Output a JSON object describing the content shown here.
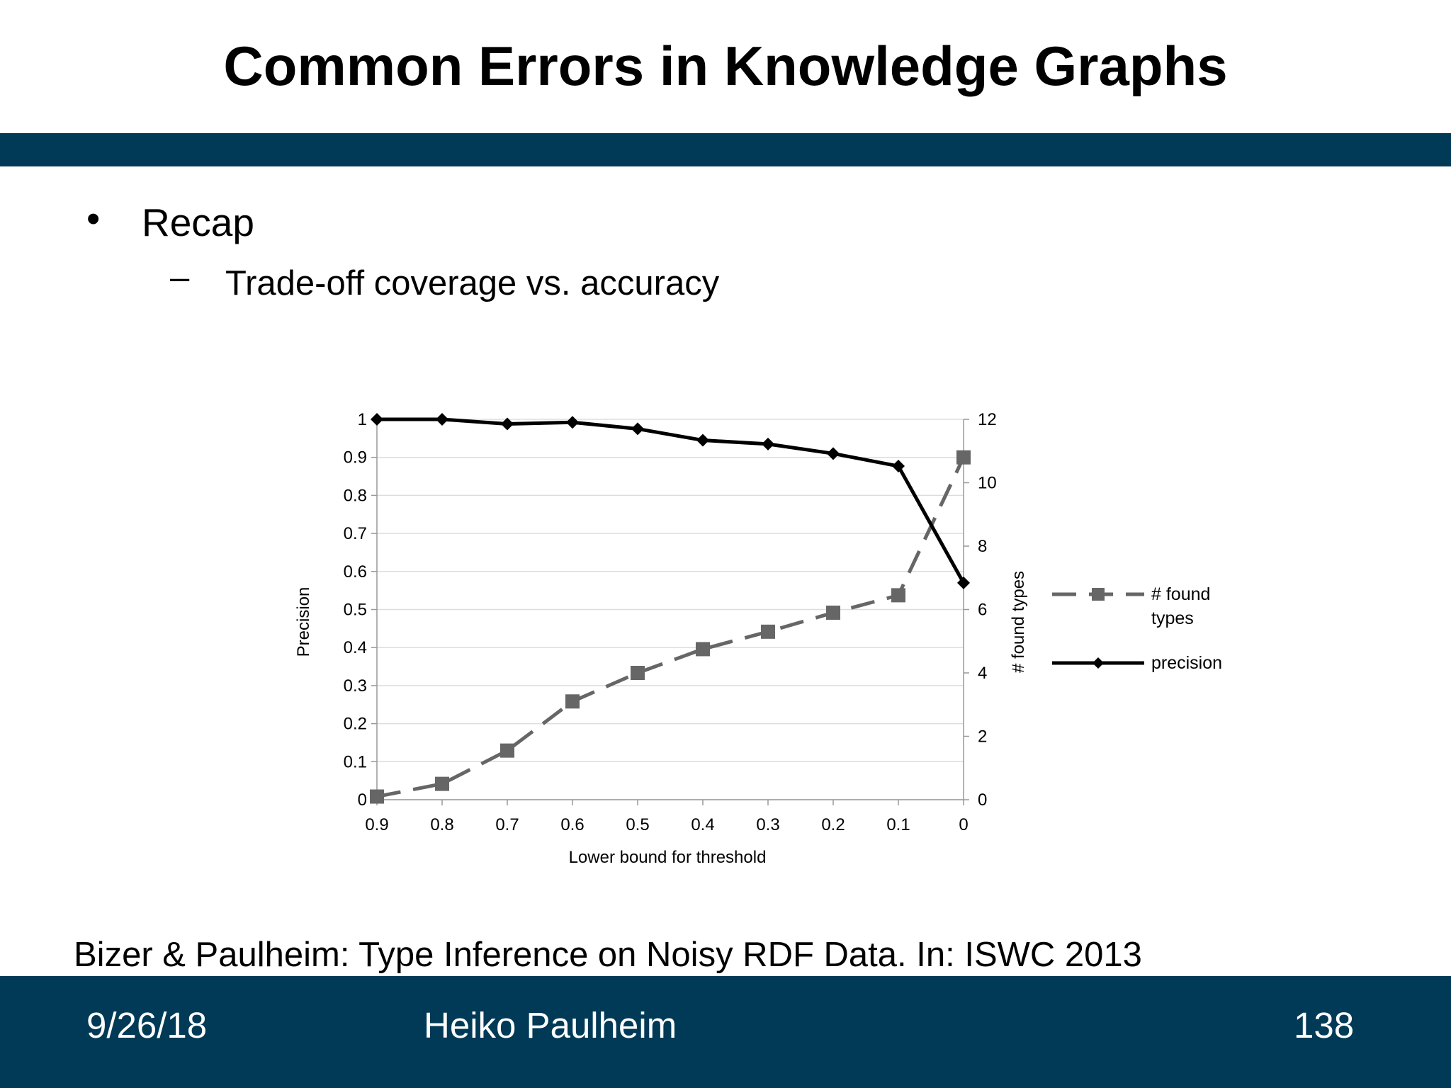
{
  "slide": {
    "title": "Common Errors in Knowledge Graphs",
    "bullet_marker": "•",
    "bullet": "Recap",
    "sub_marker": "–",
    "sub_bullet": "Trade-off coverage vs. accuracy",
    "citation": "Bizer & Paulheim: Type Inference on Noisy RDF Data. In: ISWC 2013"
  },
  "footer": {
    "date": "9/26/18",
    "author": "Heiko Paulheim",
    "page": "138"
  },
  "colors": {
    "bar": "#003a56",
    "precision_line": "#000000",
    "found_types_line": "#666666",
    "grid": "#dddddd"
  },
  "chart_data": {
    "type": "line",
    "title": "",
    "xlabel": "Lower bound for threshold",
    "ylabel": "Precision",
    "y2label": "# found types",
    "categories": [
      "0.9",
      "0.8",
      "0.7",
      "0.6",
      "0.5",
      "0.4",
      "0.3",
      "0.2",
      "0.1",
      "0"
    ],
    "ylim": [
      0,
      1
    ],
    "y2lim": [
      0,
      12
    ],
    "yticks": [
      "0",
      "0.1",
      "0.2",
      "0.3",
      "0.4",
      "0.5",
      "0.6",
      "0.7",
      "0.8",
      "0.9",
      "1"
    ],
    "y2ticks": [
      "0",
      "2",
      "4",
      "6",
      "8",
      "10",
      "12"
    ],
    "grid": true,
    "legend_position": "right",
    "series": [
      {
        "name": "# found types",
        "axis": "right",
        "style": "dashed",
        "marker": "square",
        "values": [
          0.1,
          0.5,
          1.55,
          3.1,
          4.0,
          4.75,
          5.3,
          5.9,
          6.45,
          10.8
        ]
      },
      {
        "name": "precision",
        "axis": "left",
        "style": "solid",
        "marker": "diamond",
        "values": [
          1.0,
          1.0,
          0.988,
          0.992,
          0.975,
          0.945,
          0.935,
          0.91,
          0.877,
          0.57
        ]
      }
    ]
  }
}
